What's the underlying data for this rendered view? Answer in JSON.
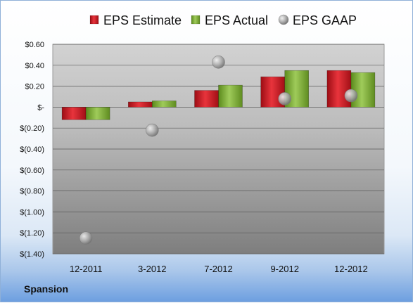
{
  "company": "Spansion",
  "chart_data": {
    "type": "bar",
    "categories": [
      "12-2011",
      "3-2012",
      "7-2012",
      "9-2012",
      "12-2012"
    ],
    "series": [
      {
        "name": "EPS Estimate",
        "kind": "bar",
        "color": "#c0161f",
        "values": [
          -0.12,
          0.05,
          0.16,
          0.29,
          0.35
        ]
      },
      {
        "name": "EPS Actual",
        "kind": "bar",
        "color": "#6f9e2a",
        "values": [
          -0.12,
          0.06,
          0.21,
          0.35,
          0.33
        ]
      },
      {
        "name": "EPS GAAP",
        "kind": "scatter",
        "color": "#9a9a9a",
        "values": [
          -1.25,
          -0.22,
          0.43,
          0.08,
          0.11
        ]
      }
    ],
    "ylim": [
      -1.4,
      0.6
    ],
    "yticks": [
      0.6,
      0.4,
      0.2,
      0,
      -0.2,
      -0.4,
      -0.6,
      -0.8,
      -1.0,
      -1.2,
      -1.4
    ],
    "ytick_labels": [
      "$0.60",
      "$0.40",
      "$0.20",
      "$-",
      "$(0.20)",
      "$(0.40)",
      "$(0.60)",
      "$(0.80)",
      "$(1.00)",
      "$(1.20)",
      "$(1.40)"
    ],
    "legend": "top",
    "grid": true
  }
}
